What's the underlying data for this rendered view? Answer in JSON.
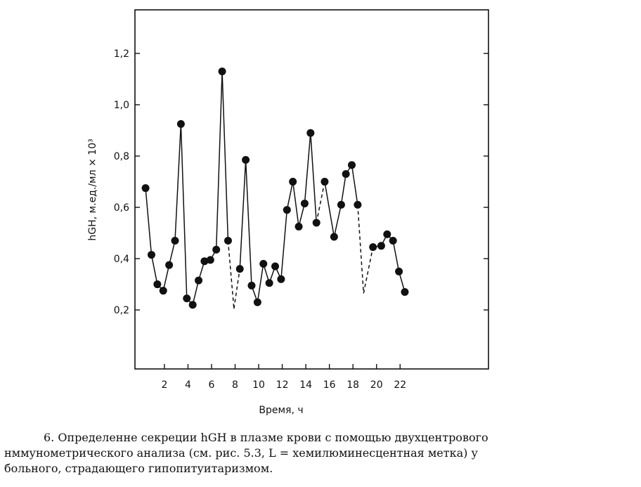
{
  "chart_data": {
    "type": "line",
    "xlabel": "Время, ч",
    "ylabel": "hGH, м.ед./мл × 10³",
    "xlim": [
      -0.5,
      29.5
    ],
    "ylim": [
      -0.03,
      1.37
    ],
    "x_ticks": [
      2,
      4,
      6,
      8,
      10,
      12,
      14,
      16,
      18,
      20,
      22
    ],
    "x_tick_labels": [
      "2",
      "4",
      "6",
      "8",
      "10",
      "12",
      "14",
      "16",
      "18",
      "20",
      "22"
    ],
    "y_ticks": [
      0.2,
      0.4,
      0.6,
      0.8,
      1.0,
      1.2
    ],
    "y_tick_labels": [
      "0,2",
      "0,4",
      "0,6",
      "0,8",
      "1,0",
      "1,2"
    ],
    "grid": false,
    "series": [
      {
        "style": "solid-with-markers",
        "points": [
          [
            0.4,
            0.675
          ],
          [
            0.9,
            0.415
          ],
          [
            1.4,
            0.3
          ],
          [
            1.9,
            0.275
          ],
          [
            2.4,
            0.375
          ],
          [
            2.9,
            0.47
          ],
          [
            3.4,
            0.925
          ],
          [
            3.9,
            0.245
          ],
          [
            4.4,
            0.22
          ],
          [
            4.9,
            0.315
          ],
          [
            5.4,
            0.39
          ],
          [
            5.9,
            0.395
          ],
          [
            6.4,
            0.435
          ],
          [
            6.9,
            1.13
          ],
          [
            7.4,
            0.47
          ],
          [
            7.9,
            0.205
          ],
          [
            8.4,
            0.36
          ],
          [
            8.9,
            0.785
          ],
          [
            9.4,
            0.295
          ],
          [
            9.9,
            0.23
          ],
          [
            10.4,
            0.38
          ],
          [
            10.9,
            0.305
          ],
          [
            11.4,
            0.37
          ],
          [
            11.9,
            0.32
          ],
          [
            12.4,
            0.59
          ],
          [
            12.9,
            0.7
          ],
          [
            13.4,
            0.525
          ],
          [
            13.9,
            0.615
          ],
          [
            14.4,
            0.89
          ],
          [
            14.9,
            0.54
          ],
          [
            15.6,
            0.7
          ],
          [
            16.4,
            0.485
          ],
          [
            17.0,
            0.61
          ],
          [
            17.4,
            0.73
          ],
          [
            17.9,
            0.765
          ],
          [
            18.4,
            0.61
          ],
          [
            18.9,
            0.265
          ],
          [
            19.7,
            0.445
          ],
          [
            20.4,
            0.45
          ],
          [
            20.9,
            0.495
          ],
          [
            21.4,
            0.47
          ],
          [
            21.9,
            0.35
          ],
          [
            22.4,
            0.27
          ]
        ],
        "no_marker": [
          15,
          36
        ],
        "dashed_segments": [
          [
            14,
            15
          ],
          [
            15,
            16
          ],
          [
            29,
            30
          ],
          [
            35,
            36
          ],
          [
            36,
            37
          ]
        ]
      }
    ]
  },
  "caption": {
    "lines": [
      "6. Определенне секреции hGH в плазме крови с помощью двухцентрового",
      "нммунометрического анализа   (см. рис. 5.3,  L  = хемилюминесцентная метка)  у",
      "больного, страдающего гипопитуитаризмом."
    ]
  }
}
